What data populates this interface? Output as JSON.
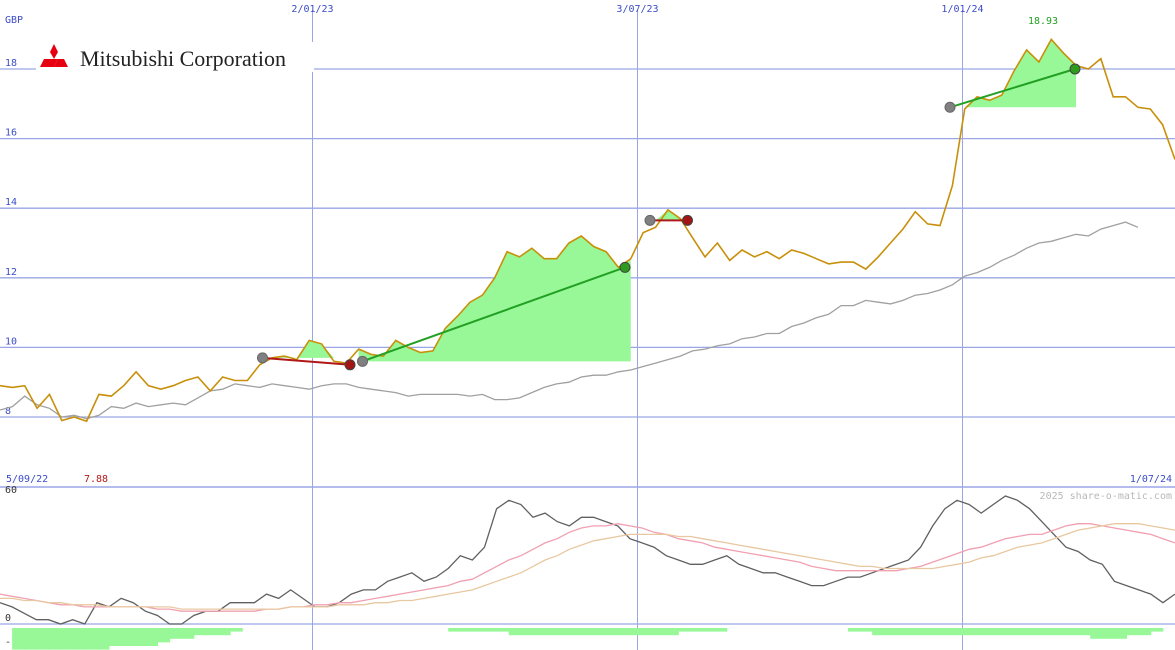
{
  "company": "Mitsubishi Corporation",
  "currency": "GBP",
  "watermark": "2025 share-o-matic.com",
  "start_date": "5/09/22",
  "end_date": "1/07/24",
  "min_label": "7.88",
  "max_label": "18.93",
  "colors": {
    "price": "#c8900a",
    "moving_average": "#a0a0a0",
    "gain_fill": "#98f898",
    "loss_fill": "#ffb0b0",
    "gain_line": "#22a022",
    "loss_line": "#b01818",
    "grid": "#9aa6e6",
    "axis_text": "#3c4cc8",
    "logo": "#e60012"
  },
  "chart_data": {
    "type": "line",
    "ylabel": "GBP",
    "ylim": [
      7.4,
      19.5
    ],
    "y_ticks": [
      8,
      10,
      12,
      14,
      16,
      18
    ],
    "x_ticks": [
      {
        "label": "2/01/23",
        "week": 25
      },
      {
        "label": "3/07/23",
        "week": 51
      },
      {
        "label": "1/01/24",
        "week": 77
      }
    ],
    "x_range": [
      0,
      94
    ],
    "series": [
      {
        "key": "price",
        "values": [
          8.9,
          8.85,
          8.9,
          8.25,
          8.65,
          7.9,
          8.0,
          7.88,
          8.65,
          8.6,
          8.9,
          9.3,
          8.9,
          8.8,
          8.9,
          9.05,
          9.15,
          8.75,
          9.15,
          9.05,
          9.05,
          9.5,
          9.7,
          9.75,
          9.65,
          10.2,
          10.1,
          9.6,
          9.55,
          9.95,
          9.8,
          9.75,
          10.2,
          10.0,
          9.85,
          9.9,
          10.55,
          10.9,
          11.3,
          11.5,
          12.0,
          12.75,
          12.6,
          12.85,
          12.55,
          12.55,
          13.0,
          13.2,
          12.9,
          12.75,
          12.3,
          12.55,
          13.3,
          13.45,
          13.95,
          13.7,
          13.15,
          12.6,
          13.0,
          12.5,
          12.8,
          12.6,
          12.75,
          12.55,
          12.8,
          12.7,
          12.55,
          12.4,
          12.45,
          12.45,
          12.25,
          12.6,
          13.0,
          13.4,
          13.9,
          13.55,
          13.5,
          14.65,
          16.85,
          17.2,
          17.1,
          17.25,
          17.95,
          18.55,
          18.2,
          18.85,
          18.45,
          18.1,
          18.0,
          18.3,
          17.2,
          17.2,
          16.9,
          16.85,
          16.4,
          15.4
        ]
      },
      {
        "key": "moving_average",
        "values": [
          8.2,
          8.3,
          8.6,
          8.35,
          8.25,
          8.0,
          8.05,
          7.95,
          8.05,
          8.3,
          8.25,
          8.4,
          8.3,
          8.35,
          8.4,
          8.35,
          8.55,
          8.75,
          8.8,
          8.95,
          8.9,
          8.85,
          8.95,
          8.9,
          8.85,
          8.8,
          8.9,
          8.95,
          8.95,
          8.85,
          8.8,
          8.75,
          8.7,
          8.6,
          8.65,
          8.65,
          8.65,
          8.65,
          8.6,
          8.65,
          8.5,
          8.5,
          8.55,
          8.7,
          8.85,
          8.95,
          9.0,
          9.15,
          9.2,
          9.2,
          9.3,
          9.35,
          9.45,
          9.55,
          9.65,
          9.75,
          9.9,
          9.95,
          10.05,
          10.1,
          10.25,
          10.3,
          10.4,
          10.4,
          10.6,
          10.7,
          10.85,
          10.95,
          11.2,
          11.2,
          11.35,
          11.3,
          11.25,
          11.35,
          11.5,
          11.55,
          11.65,
          11.8,
          12.05,
          12.15,
          12.3,
          12.5,
          12.65,
          12.85,
          13.0,
          13.05,
          13.15,
          13.25,
          13.2,
          13.4,
          13.5,
          13.6,
          13.45
        ]
      }
    ],
    "trades": [
      {
        "entry_week": 21,
        "entry_price": 9.7,
        "exit_week": 28,
        "exit_price": 9.5,
        "result": "loss"
      },
      {
        "entry_week": 29,
        "entry_price": 9.6,
        "exit_week": 50,
        "exit_price": 12.3,
        "result": "gain"
      },
      {
        "entry_week": 52,
        "entry_price": 13.65,
        "exit_week": 55,
        "exit_price": 13.65,
        "result": "loss"
      },
      {
        "entry_week": 76,
        "entry_price": 16.9,
        "exit_week": 86,
        "exit_price": 18.0,
        "result": "gain"
      }
    ],
    "indicator": {
      "ylim": [
        -15,
        62
      ],
      "y_ticks": [
        60,
        0,
        -10
      ],
      "series": [
        {
          "key": "momentum",
          "color": "#606060",
          "values": [
            10,
            8,
            5,
            2,
            2,
            0,
            2,
            0,
            10,
            8,
            12,
            10,
            6,
            4,
            0,
            0,
            4,
            6,
            6,
            10,
            10,
            10,
            14,
            12,
            16,
            12,
            8,
            8,
            10,
            14,
            16,
            16,
            20,
            22,
            24,
            20,
            22,
            26,
            32,
            30,
            36,
            54,
            58,
            56,
            50,
            52,
            48,
            46,
            50,
            50,
            48,
            46,
            40,
            38,
            36,
            32,
            30,
            28,
            28,
            30,
            32,
            28,
            26,
            24,
            24,
            22,
            20,
            18,
            18,
            20,
            22,
            22,
            24,
            26,
            28,
            30,
            36,
            46,
            54,
            58,
            56,
            52,
            56,
            60,
            58,
            54,
            48,
            42,
            36,
            34,
            30,
            28,
            20,
            18,
            16,
            14,
            10,
            14
          ]
        },
        {
          "key": "fast_ma",
          "color": "#f0a0b0",
          "values": [
            14,
            13,
            12,
            11,
            10,
            9,
            9,
            8,
            8,
            8,
            8,
            8,
            8,
            7,
            7,
            6,
            6,
            6,
            6,
            6,
            6,
            6,
            7,
            7,
            8,
            8,
            9,
            9,
            10,
            10,
            11,
            12,
            13,
            14,
            15,
            16,
            17,
            18,
            20,
            21,
            24,
            27,
            30,
            32,
            35,
            38,
            40,
            43,
            45,
            46,
            46,
            47,
            46,
            45,
            43,
            42,
            40,
            39,
            38,
            36,
            35,
            34,
            33,
            32,
            31,
            30,
            29,
            27,
            26,
            25,
            25,
            25,
            25,
            25,
            25,
            26,
            27,
            29,
            31,
            33,
            35,
            36,
            38,
            40,
            41,
            42,
            42,
            44,
            46,
            47,
            47,
            46,
            45,
            44,
            43,
            42,
            40,
            38
          ]
        },
        {
          "key": "slow_ma",
          "color": "#e8c8a0",
          "values": [
            12,
            12,
            11,
            11,
            10,
            10,
            9,
            9,
            9,
            8,
            8,
            8,
            8,
            8,
            8,
            7,
            7,
            7,
            7,
            7,
            7,
            7,
            7,
            7,
            8,
            8,
            8,
            8,
            9,
            9,
            9,
            10,
            10,
            11,
            11,
            12,
            13,
            14,
            15,
            16,
            18,
            20,
            22,
            24,
            27,
            30,
            32,
            35,
            37,
            39,
            40,
            41,
            42,
            42,
            42,
            42,
            41,
            41,
            40,
            39,
            38,
            37,
            36,
            35,
            34,
            33,
            32,
            31,
            30,
            29,
            28,
            27,
            27,
            26,
            26,
            26,
            26,
            26,
            27,
            28,
            29,
            31,
            32,
            34,
            36,
            37,
            38,
            40,
            42,
            44,
            45,
            46,
            47,
            47,
            47,
            46,
            45,
            44
          ]
        }
      ],
      "histogram": [
        0,
        -6,
        -6,
        -6,
        -6,
        -6,
        -6,
        -6,
        -6,
        -5,
        -5,
        -5,
        -5,
        -4,
        -3,
        -3,
        -2,
        -2,
        -2,
        -1,
        0,
        0,
        0,
        0,
        0,
        0,
        0,
        0,
        0,
        0,
        0,
        0,
        0,
        0,
        0,
        0,
        0,
        -1,
        -1,
        -1,
        -1,
        -1,
        -2,
        -2,
        -2,
        -2,
        -2,
        -2,
        -2,
        -2,
        -2,
        -2,
        -2,
        -2,
        -2,
        -2,
        -1,
        -1,
        -1,
        -1,
        0,
        0,
        0,
        0,
        0,
        0,
        0,
        0,
        0,
        0,
        -1,
        -1,
        -2,
        -2,
        -2,
        -2,
        -2,
        -2,
        -2,
        -2,
        -2,
        -2,
        -2,
        -2,
        -2,
        -2,
        -2,
        -2,
        -2,
        -2,
        -3,
        -3,
        -3,
        -2,
        -2,
        -1,
        0
      ]
    }
  }
}
